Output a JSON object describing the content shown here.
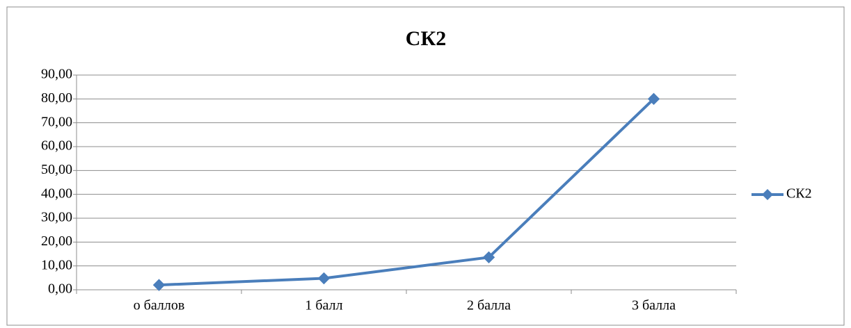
{
  "chart_data": {
    "type": "line",
    "title": "СК2",
    "categories": [
      "о баллов",
      "1 балл",
      "2 балла",
      "3 балла"
    ],
    "series": [
      {
        "name": "СК2",
        "color": "#4a7ebb",
        "values": [
          2.0,
          4.8,
          13.6,
          80.0
        ]
      }
    ],
    "ylim": [
      0,
      90
    ],
    "yticks": [
      {
        "value": 0,
        "label": "0,00"
      },
      {
        "value": 10,
        "label": "10,00"
      },
      {
        "value": 20,
        "label": "20,00"
      },
      {
        "value": 30,
        "label": "30,00"
      },
      {
        "value": 40,
        "label": "40,00"
      },
      {
        "value": 50,
        "label": "50,00"
      },
      {
        "value": 60,
        "label": "60,00"
      },
      {
        "value": 70,
        "label": "70,00"
      },
      {
        "value": 80,
        "label": "80,00"
      },
      {
        "value": 90,
        "label": "90,00"
      }
    ],
    "grid": true,
    "legend": "right"
  }
}
